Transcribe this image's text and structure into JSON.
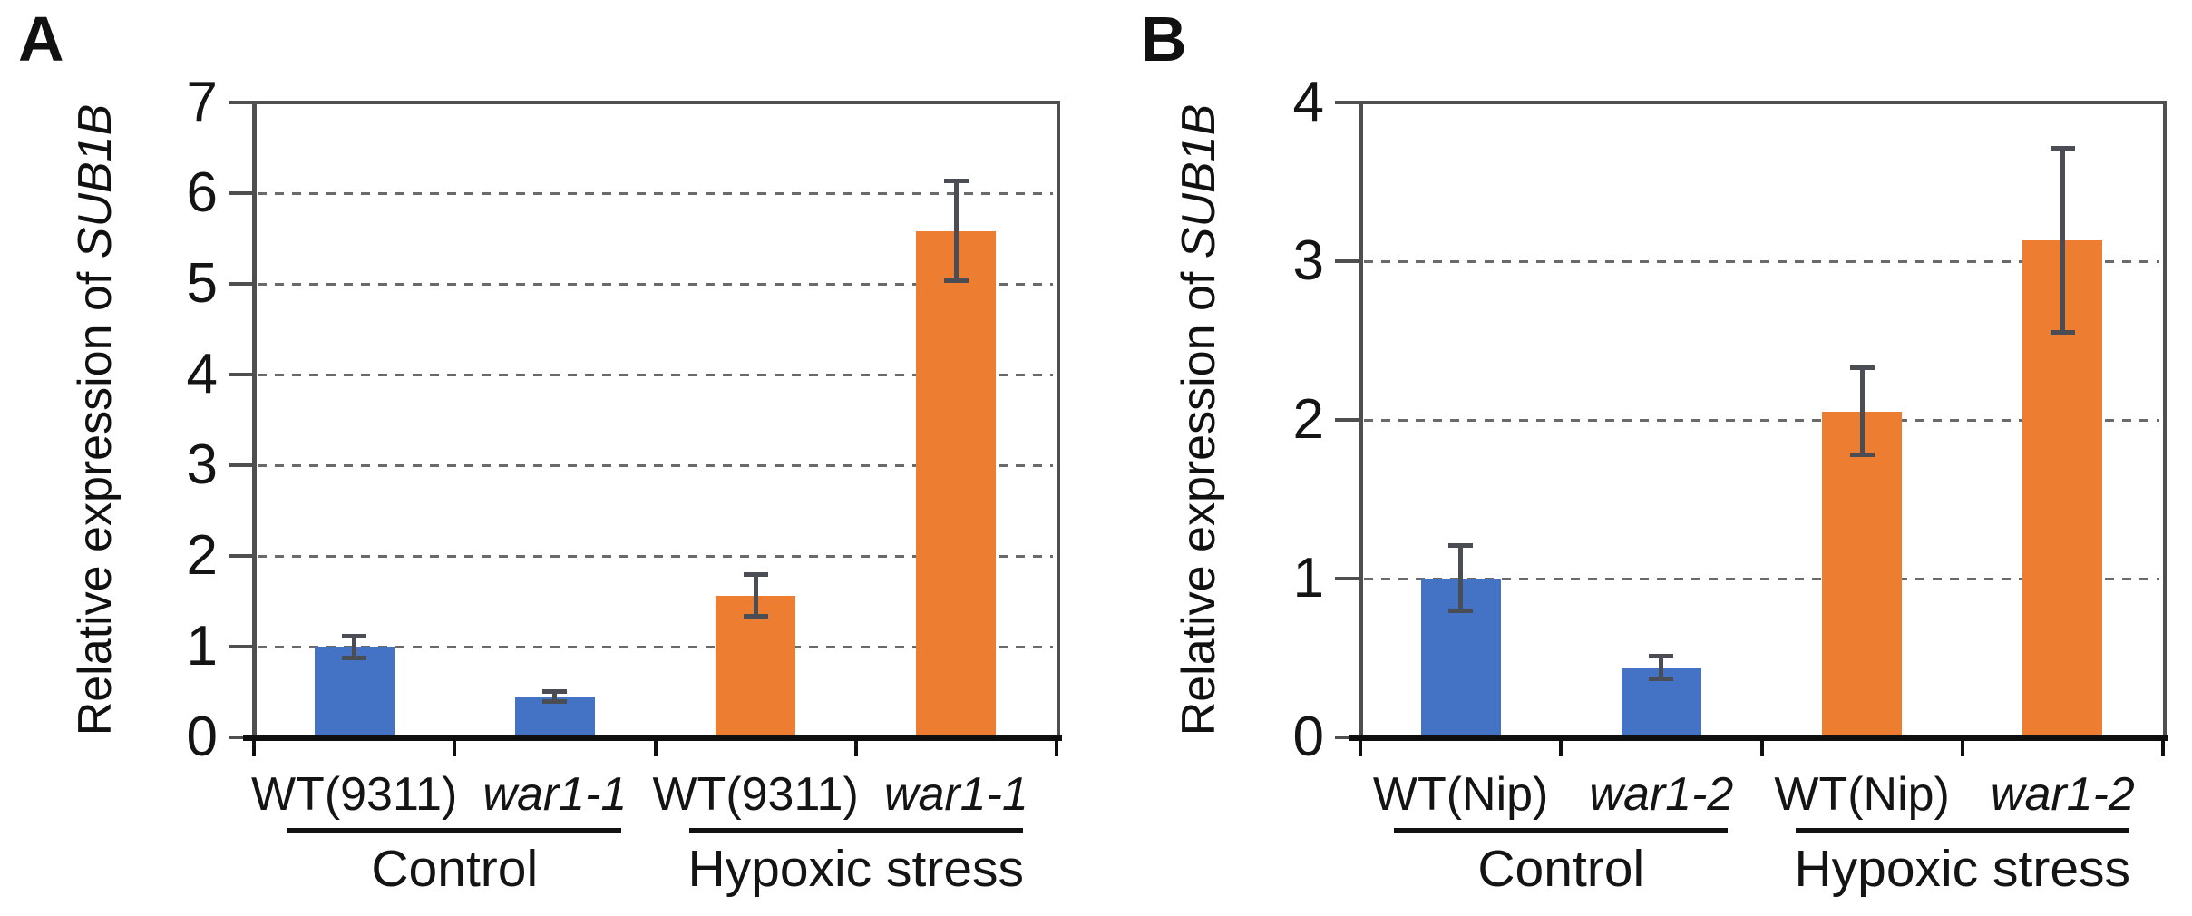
{
  "figure": {
    "description": "Two-panel bar figure of relative SUB1B expression under control and hypoxic stress",
    "background": "#ffffff"
  },
  "colors": {
    "control_bars": "#4472c4",
    "hypoxic_bars": "#ed7d31",
    "error_bar": "#4a4e54",
    "axis_box": "#4f4f4f",
    "x_baseline": "#0f0f0f",
    "gridline": "#6a6a6a",
    "text": "#161616"
  },
  "chart_data": [
    {
      "panel": "A",
      "type": "bar",
      "ylabel_prefix": "Relative expression of ",
      "ylabel_gene": "SUB1B",
      "ylabel_full": "Relative expression of SUB1B",
      "ylim": [
        0,
        7
      ],
      "yticks": [
        0,
        1,
        2,
        3,
        4,
        5,
        6,
        7
      ],
      "grid": "horizontal dashed lines at 1-6, solid box top at 7",
      "legend": "none",
      "bars": [
        {
          "label": "WT(9311)",
          "italic": false,
          "group": "Control",
          "value": 1.0,
          "err_low": 0.88,
          "err_high": 1.12,
          "color": "#4472c4"
        },
        {
          "label": "war1-1",
          "italic": true,
          "group": "Control",
          "value": 0.45,
          "err_low": 0.4,
          "err_high": 0.51,
          "color": "#4472c4"
        },
        {
          "label": "WT(9311)",
          "italic": false,
          "group": "Hypoxic stress",
          "value": 1.56,
          "err_low": 1.34,
          "err_high": 1.8,
          "color": "#ed7d31"
        },
        {
          "label": "war1-1",
          "italic": true,
          "group": "Hypoxic stress",
          "value": 5.58,
          "err_low": 5.04,
          "err_high": 6.14,
          "color": "#ed7d31"
        }
      ],
      "groups": [
        {
          "label": "Control",
          "bar_indexes": [
            0,
            1
          ]
        },
        {
          "label": "Hypoxic stress",
          "bar_indexes": [
            2,
            3
          ]
        }
      ]
    },
    {
      "panel": "B",
      "type": "bar",
      "ylabel_prefix": "Relative expression of ",
      "ylabel_gene": "SUB1B",
      "ylabel_full": "Relative expression of SUB1B",
      "ylim": [
        0,
        4
      ],
      "yticks": [
        0,
        1,
        2,
        3,
        4
      ],
      "grid": "horizontal dashed lines at 1-3, solid box top at 4",
      "legend": "none",
      "bars": [
        {
          "label": "WT(Nip)",
          "italic": false,
          "group": "Control",
          "value": 1.0,
          "err_low": 0.8,
          "err_high": 1.21,
          "color": "#4472c4"
        },
        {
          "label": "war1-2",
          "italic": true,
          "group": "Control",
          "value": 0.44,
          "err_low": 0.37,
          "err_high": 0.51,
          "color": "#4472c4"
        },
        {
          "label": "WT(Nip)",
          "italic": false,
          "group": "Hypoxic stress",
          "value": 2.05,
          "err_low": 1.78,
          "err_high": 2.33,
          "color": "#ed7d31"
        },
        {
          "label": "war1-2",
          "italic": true,
          "group": "Hypoxic stress",
          "value": 3.13,
          "err_low": 2.55,
          "err_high": 3.71,
          "color": "#ed7d31"
        }
      ],
      "groups": [
        {
          "label": "Control",
          "bar_indexes": [
            0,
            1
          ]
        },
        {
          "label": "Hypoxic stress",
          "bar_indexes": [
            2,
            3
          ]
        }
      ]
    }
  ]
}
